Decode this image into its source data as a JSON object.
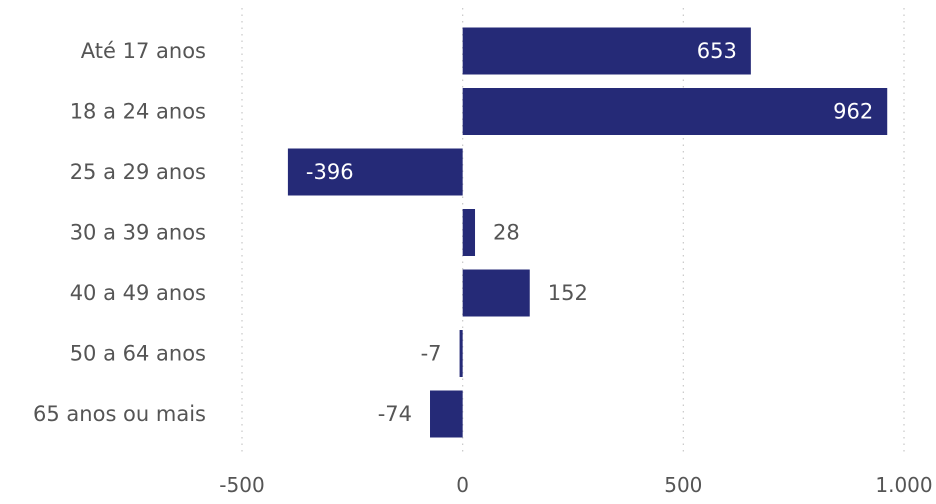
{
  "chart_data": {
    "type": "bar",
    "orientation": "horizontal",
    "categories": [
      "Até 17 anos",
      "18 a 24 anos",
      "25 a 29 anos",
      "30 a 39 anos",
      "40 a 49 anos",
      "50 a 64 anos",
      "65 anos ou mais"
    ],
    "values": [
      653,
      962,
      -396,
      28,
      152,
      -7,
      -74
    ],
    "data_labels": [
      "653",
      "962",
      "-396",
      "28",
      "152",
      "-7",
      "-74"
    ],
    "xlim": [
      -500,
      1000
    ],
    "x_ticks": [
      -500,
      0,
      500,
      1000
    ],
    "x_tick_labels": [
      "-500",
      "0",
      "500",
      "1.000"
    ],
    "grid": true,
    "bar_color": "#252A77",
    "title": "",
    "xlabel": "",
    "ylabel": ""
  }
}
